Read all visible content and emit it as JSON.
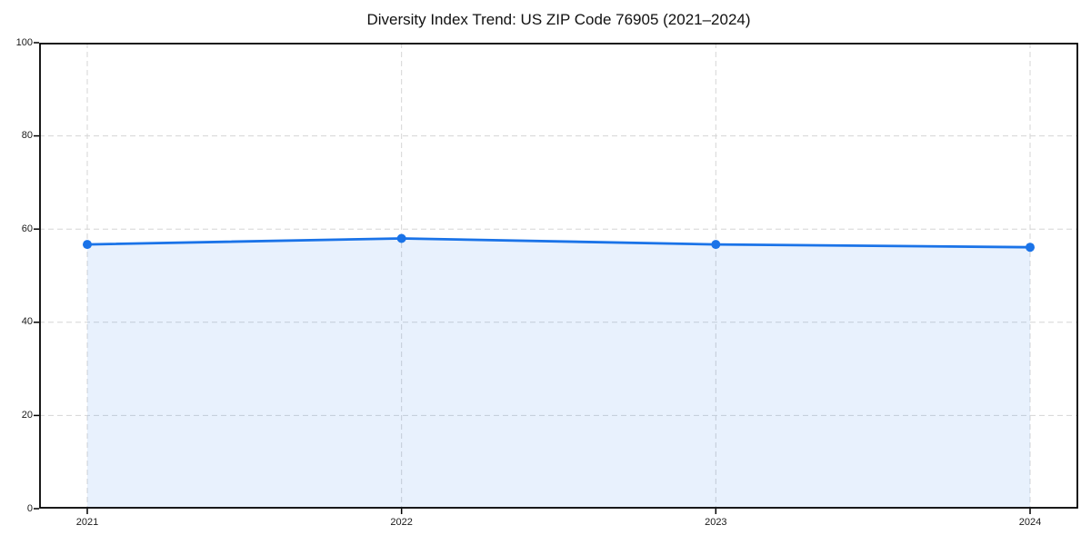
{
  "chart_data": {
    "type": "area",
    "title": "Diversity Index Trend: US ZIP Code 76905 (2021–2024)",
    "categories": [
      "2021",
      "2022",
      "2023",
      "2024"
    ],
    "series": [
      {
        "name": "Diversity Index",
        "values": [
          56.7,
          58.0,
          56.7,
          56.1
        ]
      }
    ],
    "xlabel": "",
    "ylabel": "",
    "ylim": [
      0,
      100
    ],
    "yticks": [
      0,
      20,
      40,
      60,
      80,
      100
    ],
    "grid": true,
    "grid_style": "dashed",
    "legend": false,
    "colors": {
      "line": "#1a73e8",
      "marker": "#1a73e8",
      "fill": "#1a73e8",
      "fill_opacity": 0.1,
      "grid": "#d5d5d5",
      "spine": "#000000",
      "text": "#1a1a1a",
      "background": "#ffffff"
    }
  }
}
